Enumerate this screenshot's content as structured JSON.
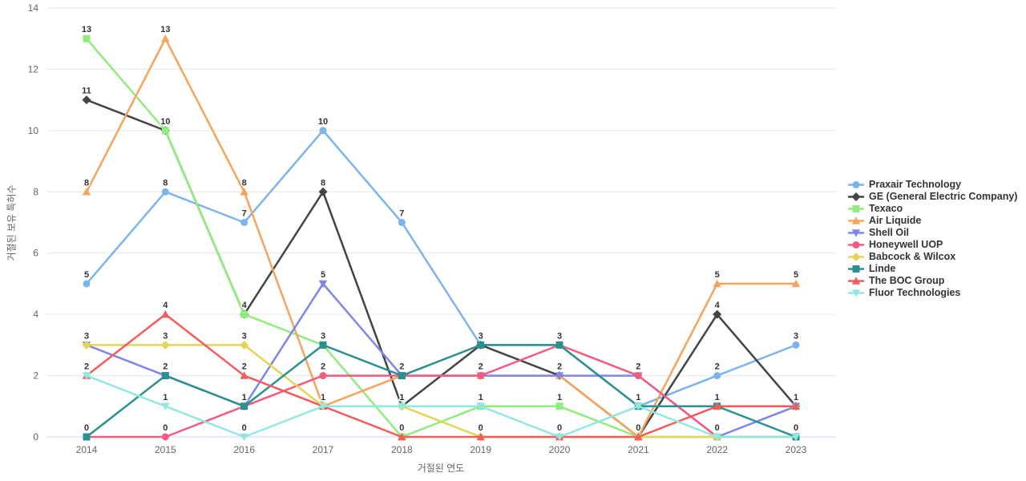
{
  "chart_data": {
    "type": "line",
    "title": "",
    "xlabel": "거절된 연도",
    "ylabel": "거절된 보유 특허수",
    "categories": [
      "2014",
      "2015",
      "2016",
      "2017",
      "2018",
      "2019",
      "2020",
      "2021",
      "2022",
      "2023"
    ],
    "ylim": [
      0,
      14
    ],
    "yticks": [
      0,
      2,
      4,
      6,
      8,
      10,
      12,
      14
    ],
    "grid": true,
    "legend_position": "right",
    "data_labels": true,
    "series": [
      {
        "name": "Praxair Technology",
        "color": "#7cb5ec",
        "marker": "circle",
        "values": [
          5,
          8,
          7,
          10,
          7,
          3,
          3,
          1,
          2,
          3
        ]
      },
      {
        "name": "GE (General Electric Company)",
        "color": "#434348",
        "marker": "diamond",
        "values": [
          11,
          10,
          4,
          8,
          1,
          3,
          2,
          0,
          4,
          1
        ]
      },
      {
        "name": "Texaco",
        "color": "#90ed7d",
        "marker": "square",
        "values": [
          13,
          10,
          4,
          3,
          0,
          1,
          1,
          0,
          0,
          1
        ]
      },
      {
        "name": "Air Liquide",
        "color": "#f7a35c",
        "marker": "triangle",
        "values": [
          8,
          13,
          8,
          1,
          2,
          2,
          2,
          0,
          5,
          5
        ]
      },
      {
        "name": "Shell Oil",
        "color": "#8085e9",
        "marker": "triangle-down",
        "values": [
          3,
          2,
          1,
          5,
          2,
          2,
          2,
          2,
          0,
          1
        ]
      },
      {
        "name": "Honeywell UOP",
        "color": "#f15c80",
        "marker": "circle",
        "values": [
          0,
          0,
          1,
          2,
          2,
          2,
          3,
          2,
          0,
          0
        ]
      },
      {
        "name": "Babcock & Wilcox",
        "color": "#e4d354",
        "marker": "diamond",
        "values": [
          3,
          3,
          3,
          1,
          1,
          0,
          0,
          0,
          0,
          0
        ]
      },
      {
        "name": "Linde",
        "color": "#2b908f",
        "marker": "square",
        "values": [
          0,
          2,
          1,
          3,
          2,
          3,
          3,
          1,
          1,
          0
        ]
      },
      {
        "name": "The BOC Group",
        "color": "#f45b5b",
        "marker": "triangle",
        "values": [
          2,
          4,
          2,
          1,
          0,
          0,
          0,
          0,
          1,
          1
        ]
      },
      {
        "name": "Fluor Technologies",
        "color": "#91e8e1",
        "marker": "triangle-down",
        "values": [
          2,
          1,
          0,
          1,
          1,
          1,
          0,
          1,
          0,
          0
        ]
      }
    ],
    "colors": {
      "tick_label": "#666666",
      "grid_line": "#e6e6e6",
      "axis_line": "#ccd6eb",
      "data_label": "#333333",
      "legend_text": "#333333",
      "background": "#ffffff"
    }
  }
}
